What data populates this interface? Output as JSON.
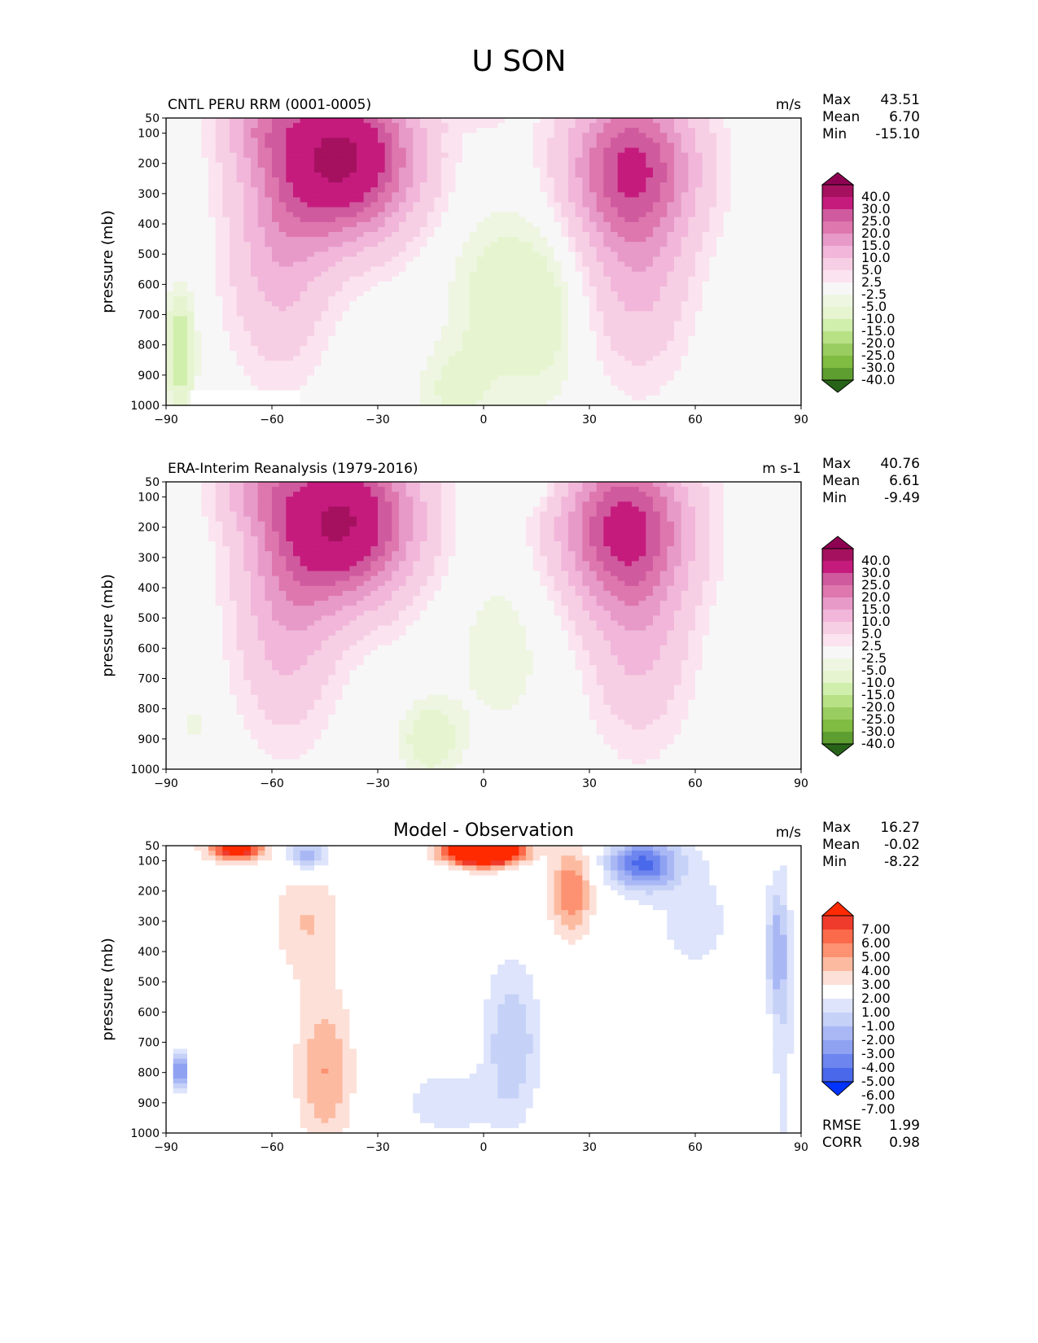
{
  "figure": {
    "suptitle": "U SON"
  },
  "colors": {
    "pos_scale": [
      "#f7f7f7",
      "#fbe3f0",
      "#f7cfe4",
      "#f1b6da",
      "#e79ac8",
      "#de77ae",
      "#d05a9e",
      "#c51b7d",
      "#a5115f",
      "#8e0152"
    ],
    "neg_scale": [
      "#f7f7f7",
      "#eef6e2",
      "#e6f5d0",
      "#d0eeac",
      "#b8e186",
      "#9acd61",
      "#7fbc41",
      "#5e9e30",
      "#4d9221",
      "#276419"
    ],
    "diff_pos": [
      "#ffffff",
      "#fde0d8",
      "#fcbba1",
      "#fc9272",
      "#fb6a4a",
      "#ef3b2c",
      "#ff2a00"
    ],
    "diff_neg": [
      "#ffffff",
      "#dde4fb",
      "#c6d1f8",
      "#a9b8f5",
      "#8fa2f2",
      "#6d85ee",
      "#4a68ea",
      "#0033ff"
    ]
  },
  "panels": [
    {
      "title_left": "CNTL PERU RRM (0001-0005)",
      "title_center": "",
      "units": "m/s",
      "stats": [
        {
          "label": "Max",
          "value": "43.51"
        },
        {
          "label": "Mean",
          "value": "6.70"
        },
        {
          "label": "Min",
          "value": "-15.10"
        }
      ],
      "extra_stats": []
    },
    {
      "title_left": "ERA-Interim Reanalysis (1979-2016)",
      "title_center": "",
      "units": "m s-1",
      "stats": [
        {
          "label": "Max",
          "value": "40.76"
        },
        {
          "label": "Mean",
          "value": "6.61"
        },
        {
          "label": "Min",
          "value": "-9.49"
        }
      ],
      "extra_stats": []
    },
    {
      "title_left": "",
      "title_center": "Model - Observation",
      "units": "m/s",
      "stats": [
        {
          "label": "Max",
          "value": "16.27"
        },
        {
          "label": "Mean",
          "value": "-0.02"
        },
        {
          "label": "Min",
          "value": "-8.22"
        }
      ],
      "extra_stats": [
        {
          "label": "RMSE",
          "value": "1.99"
        },
        {
          "label": "CORR",
          "value": "0.98"
        }
      ]
    }
  ],
  "chart_data": [
    {
      "type": "heatmap",
      "title": "CNTL PERU RRM (0001-0005)",
      "xlabel": "",
      "ylabel": "pressure (mb)",
      "xlim": [
        -90,
        90
      ],
      "ylim": [
        1000,
        50
      ],
      "xticks": [
        "−90",
        "−60",
        "−30",
        "0",
        "30",
        "60",
        "90"
      ],
      "yticks": [
        "50",
        "100",
        "200",
        "300",
        "400",
        "500",
        "600",
        "700",
        "800",
        "900",
        "1000"
      ],
      "colorbar_levels": [
        "40.0",
        "30.0",
        "25.0",
        "20.0",
        "15.0",
        "10.0",
        "5.0",
        "2.5",
        "-2.5",
        "-5.0",
        "-10.0",
        "-15.0",
        "-20.0",
        "-25.0",
        "-30.0",
        "-40.0"
      ],
      "features": [
        {
          "name": "southern jet core",
          "lat": -40,
          "p": 200,
          "value": 43.51
        },
        {
          "name": "northern jet core",
          "lat": 42,
          "p": 200,
          "value": 33
        },
        {
          "name": "tropical easterlies",
          "lat": 5,
          "p": 650,
          "value": -8
        },
        {
          "name": "antarctic easterlies",
          "lat": -86,
          "p": 820,
          "value": -15.1
        }
      ]
    },
    {
      "type": "heatmap",
      "title": "ERA-Interim Reanalysis (1979-2016)",
      "xlabel": "",
      "ylabel": "pressure (mb)",
      "xlim": [
        -90,
        90
      ],
      "ylim": [
        1000,
        50
      ],
      "xticks": [
        "−90",
        "−60",
        "−30",
        "0",
        "30",
        "60",
        "90"
      ],
      "yticks": [
        "50",
        "100",
        "200",
        "300",
        "400",
        "500",
        "600",
        "700",
        "800",
        "900",
        "1000"
      ],
      "colorbar_levels": [
        "40.0",
        "30.0",
        "25.0",
        "20.0",
        "15.0",
        "10.0",
        "5.0",
        "2.5",
        "-2.5",
        "-5.0",
        "-10.0",
        "-15.0",
        "-20.0",
        "-25.0",
        "-30.0",
        "-40.0"
      ],
      "features": [
        {
          "name": "southern jet core",
          "lat": -40,
          "p": 200,
          "value": 40.76
        },
        {
          "name": "northern jet core",
          "lat": 40,
          "p": 200,
          "value": 35
        },
        {
          "name": "tropical easterlies",
          "lat": -15,
          "p": 900,
          "value": -9.49
        }
      ]
    },
    {
      "type": "heatmap",
      "title": "Model - Observation",
      "xlabel": "",
      "ylabel": "pressure (mb)",
      "xlim": [
        -90,
        90
      ],
      "ylim": [
        1000,
        50
      ],
      "xticks": [
        "−90",
        "−60",
        "−30",
        "0",
        "30",
        "60",
        "90"
      ],
      "yticks": [
        "50",
        "100",
        "200",
        "300",
        "400",
        "500",
        "600",
        "700",
        "800",
        "900",
        "1000"
      ],
      "colorbar_levels": [
        "7.00",
        "6.00",
        "5.00",
        "4.00",
        "3.00",
        "2.00",
        "1.00",
        "-1.00",
        "-2.00",
        "-3.00",
        "-4.00",
        "-5.00",
        "-6.00",
        "-7.00"
      ],
      "features": [
        {
          "name": "positive bias upper SH",
          "lat": -70,
          "p": 50,
          "value": 7
        },
        {
          "name": "positive bias upper equator",
          "lat": 0,
          "p": 50,
          "value": 16.27
        },
        {
          "name": "negative bias NH jet",
          "lat": 45,
          "p": 100,
          "value": -6
        },
        {
          "name": "negative bias tropics",
          "lat": 8,
          "p": 700,
          "value": -3
        }
      ]
    }
  ]
}
